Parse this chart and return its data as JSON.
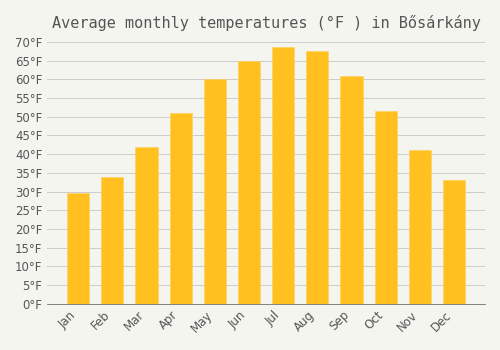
{
  "title": "Average monthly temperatures (°F ) in Bősárkány",
  "months": [
    "Jan",
    "Feb",
    "Mar",
    "Apr",
    "May",
    "Jun",
    "Jul",
    "Aug",
    "Sep",
    "Oct",
    "Nov",
    "Dec"
  ],
  "values": [
    29.5,
    34.0,
    42.0,
    51.0,
    60.0,
    65.0,
    68.5,
    67.5,
    61.0,
    51.5,
    41.0,
    33.0
  ],
  "bar_color": "#FFC020",
  "bar_edge_color": "#FFD060",
  "background_color": "#F5F5F0",
  "grid_color": "#CCCCCC",
  "text_color": "#555555",
  "ylim": [
    0,
    70
  ],
  "yticks": [
    0,
    5,
    10,
    15,
    20,
    25,
    30,
    35,
    40,
    45,
    50,
    55,
    60,
    65,
    70
  ],
  "title_fontsize": 11,
  "tick_fontsize": 8.5
}
